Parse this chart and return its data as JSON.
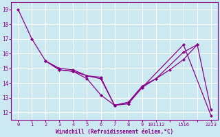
{
  "xlabel": "Windchill (Refroidissement éolien,°C)",
  "background_color": "#cce8f0",
  "grid_color": "#ffffff",
  "line_color": "#880088",
  "xtick_labels": [
    "0",
    "1",
    "2",
    "3",
    "4",
    "5",
    "6",
    "7",
    "8",
    "9",
    "101112",
    "",
    "1516",
    "",
    "2223"
  ],
  "xtick_positions": [
    0,
    1,
    2,
    3,
    4,
    5,
    6,
    7,
    8,
    9,
    10,
    11,
    12,
    13,
    14
  ],
  "yticks": [
    12,
    13,
    14,
    15,
    16,
    17,
    18,
    19
  ],
  "ylim": [
    11.5,
    19.5
  ],
  "xlim": [
    -0.5,
    14.5
  ],
  "curves": [
    {
      "xi": [
        0,
        1,
        2,
        3,
        4,
        5,
        6,
        7,
        8,
        9,
        12,
        14
      ],
      "y": [
        19.0,
        17.0,
        15.5,
        14.9,
        14.8,
        14.3,
        13.2,
        12.5,
        12.6,
        13.7,
        16.6,
        11.8
      ]
    },
    {
      "xi": [
        2,
        3,
        4,
        5,
        6,
        7,
        8,
        9,
        10,
        12,
        13,
        14
      ],
      "y": [
        15.5,
        14.9,
        14.8,
        14.5,
        14.3,
        12.5,
        12.7,
        13.8,
        14.3,
        16.1,
        16.6,
        12.2
      ]
    },
    {
      "xi": [
        2,
        3,
        4,
        5,
        6,
        7,
        8,
        9,
        10,
        11,
        12,
        13
      ],
      "y": [
        15.5,
        15.0,
        14.9,
        14.5,
        14.4,
        12.5,
        12.7,
        13.7,
        14.3,
        14.9,
        15.6,
        16.6
      ]
    }
  ]
}
